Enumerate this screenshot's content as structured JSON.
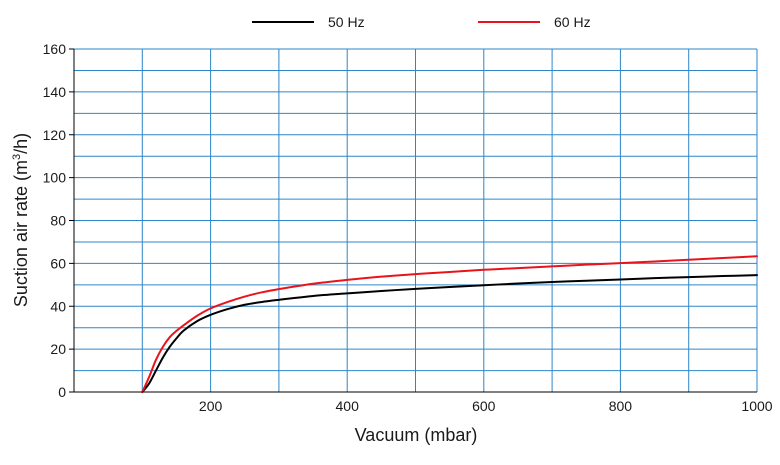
{
  "chart_data": {
    "type": "line",
    "xlabel": "Vacuum (mbar)",
    "ylabel": {
      "prefix": "Suction air rate (m",
      "superscript": "3",
      "suffix": "/h)"
    },
    "xlim": [
      0,
      1000
    ],
    "ylim": [
      0,
      160
    ],
    "x_ticks": [
      200,
      400,
      600,
      800,
      1000
    ],
    "y_ticks": [
      0,
      20,
      40,
      60,
      80,
      100,
      120,
      140,
      160
    ],
    "x_gridlines": [
      100,
      200,
      300,
      400,
      500,
      600,
      700,
      800,
      900,
      1000
    ],
    "y_gridlines": [
      10,
      20,
      30,
      40,
      50,
      60,
      70,
      80,
      90,
      100,
      110,
      120,
      130,
      140,
      150,
      160
    ],
    "grid": true,
    "grid_color": "#2e86c8",
    "legend_position": "top",
    "series": [
      {
        "name": "50 Hz",
        "color": "#000000",
        "x": [
          100,
          110,
          120,
          130,
          140,
          150,
          160,
          180,
          200,
          225,
          250,
          275,
          300,
          350,
          400,
          450,
          500,
          550,
          600,
          650,
          700,
          750,
          800,
          850,
          900,
          950,
          1000
        ],
        "y": [
          0,
          4,
          10,
          16,
          21,
          25,
          28.5,
          33,
          36,
          38.7,
          40.7,
          42,
          43,
          44.8,
          46,
          47.1,
          48.1,
          49,
          49.8,
          50.6,
          51.3,
          51.9,
          52.5,
          53.1,
          53.6,
          54.1,
          54.5
        ]
      },
      {
        "name": "60 Hz",
        "color": "#e8141c",
        "x": [
          100,
          110,
          120,
          130,
          140,
          150,
          160,
          180,
          200,
          225,
          250,
          275,
          300,
          350,
          400,
          450,
          500,
          550,
          600,
          650,
          700,
          750,
          800,
          850,
          900,
          950,
          1000
        ],
        "y": [
          0,
          7,
          15,
          21,
          25.5,
          28.5,
          31,
          35.5,
          39,
          42,
          44.5,
          46.5,
          48,
          50.5,
          52.3,
          53.8,
          55,
          56,
          57,
          57.8,
          58.6,
          59.4,
          60.1,
          60.9,
          61.7,
          62.5,
          63.3
        ]
      }
    ]
  }
}
